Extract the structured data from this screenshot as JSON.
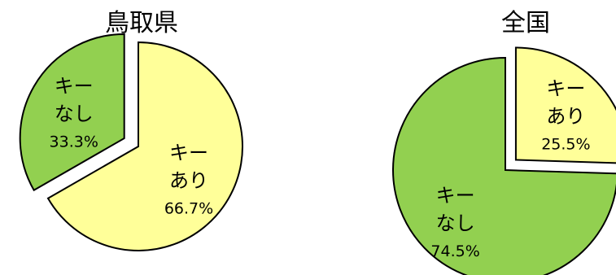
{
  "chart_data": [
    {
      "type": "pie",
      "title": "鳥取県",
      "slices": [
        {
          "label_lines": [
            "キー",
            "あり"
          ],
          "value": 66.7,
          "value_label": "66.7%",
          "color": "#FFFF99",
          "exploded": false
        },
        {
          "label_lines": [
            "キー",
            "なし"
          ],
          "value": 33.3,
          "value_label": "33.3%",
          "color": "#92D050",
          "exploded": true
        }
      ]
    },
    {
      "type": "pie",
      "title": "全国",
      "slices": [
        {
          "label_lines": [
            "キー",
            "あり"
          ],
          "value": 25.5,
          "value_label": "25.5%",
          "color": "#FFFF99",
          "exploded": true
        },
        {
          "label_lines": [
            "キー",
            "なし"
          ],
          "value": 74.5,
          "value_label": "74.5%",
          "color": "#92D050",
          "exploded": false
        }
      ]
    }
  ]
}
